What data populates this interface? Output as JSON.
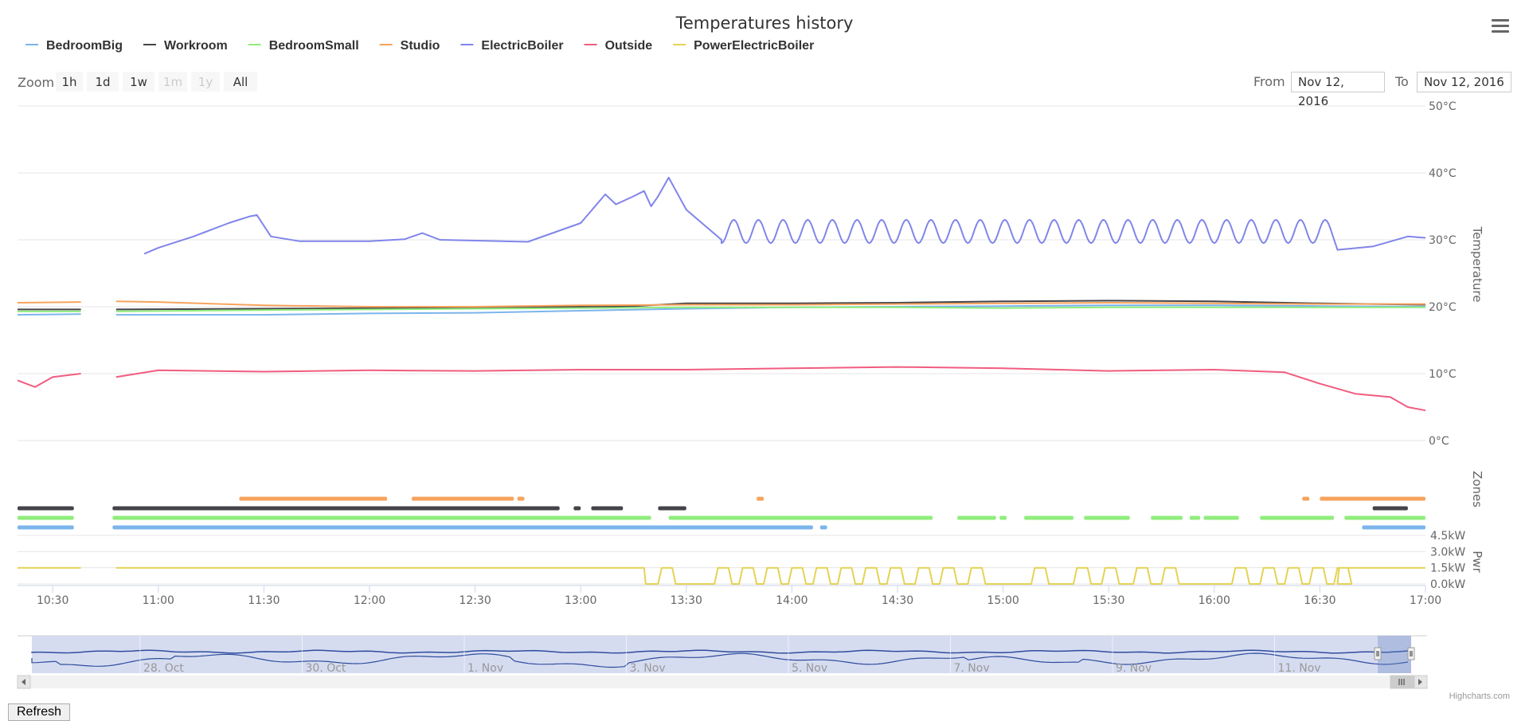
{
  "chart_data": {
    "type": "line",
    "title": "Temperatures history",
    "series": [
      {
        "name": "BedroomBig",
        "color": "#7cb5ec",
        "axis": "temperature",
        "points": [
          [
            "10:20",
            18.8
          ],
          [
            "10:38",
            18.9
          ],
          [
            "10:48",
            18.8
          ],
          [
            "11:30",
            18.8
          ],
          [
            "12:00",
            19.0
          ],
          [
            "12:30",
            19.1
          ],
          [
            "13:00",
            19.4
          ],
          [
            "13:30",
            19.7
          ],
          [
            "14:00",
            19.9
          ],
          [
            "14:30",
            20.0
          ],
          [
            "15:00",
            20.1
          ],
          [
            "15:30",
            20.2
          ],
          [
            "16:00",
            20.2
          ],
          [
            "16:30",
            20.1
          ],
          [
            "17:00",
            20.0
          ]
        ]
      },
      {
        "name": "Workroom",
        "color": "#434348",
        "axis": "temperature",
        "points": [
          [
            "10:20",
            19.6
          ],
          [
            "10:38",
            19.6
          ],
          [
            "10:48",
            19.6
          ],
          [
            "11:30",
            19.7
          ],
          [
            "12:00",
            19.8
          ],
          [
            "12:30",
            19.9
          ],
          [
            "13:00",
            20.0
          ],
          [
            "13:15",
            20.1
          ],
          [
            "13:30",
            20.5
          ],
          [
            "14:00",
            20.5
          ],
          [
            "14:30",
            20.6
          ],
          [
            "15:00",
            20.8
          ],
          [
            "15:30",
            20.9
          ],
          [
            "16:00",
            20.8
          ],
          [
            "16:30",
            20.5
          ],
          [
            "17:00",
            20.3
          ]
        ]
      },
      {
        "name": "BedroomSmall",
        "color": "#90ed7d",
        "axis": "temperature",
        "points": [
          [
            "10:20",
            19.3
          ],
          [
            "10:38",
            19.3
          ],
          [
            "10:48",
            19.3
          ],
          [
            "11:30",
            19.5
          ],
          [
            "12:00",
            19.6
          ],
          [
            "12:30",
            19.7
          ],
          [
            "13:00",
            19.8
          ],
          [
            "13:30",
            19.9
          ],
          [
            "14:00",
            19.9
          ],
          [
            "14:30",
            19.9
          ],
          [
            "15:00",
            19.8
          ],
          [
            "15:30",
            19.9
          ],
          [
            "16:00",
            19.9
          ],
          [
            "16:30",
            19.9
          ],
          [
            "17:00",
            19.9
          ]
        ]
      },
      {
        "name": "Studio",
        "color": "#f7a35c",
        "axis": "temperature",
        "points": [
          [
            "10:20",
            20.6
          ],
          [
            "10:38",
            20.7
          ],
          [
            "10:48",
            20.8
          ],
          [
            "11:00",
            20.7
          ],
          [
            "11:30",
            20.2
          ],
          [
            "12:00",
            20.0
          ],
          [
            "12:30",
            20.0
          ],
          [
            "13:00",
            20.2
          ],
          [
            "13:30",
            20.3
          ],
          [
            "14:00",
            20.3
          ],
          [
            "14:30",
            20.4
          ],
          [
            "15:00",
            20.5
          ],
          [
            "15:30",
            20.6
          ],
          [
            "16:00",
            20.5
          ],
          [
            "16:30",
            20.4
          ],
          [
            "17:00",
            20.4
          ]
        ]
      },
      {
        "name": "ElectricBoiler",
        "color": "#8085e9",
        "axis": "temperature",
        "points": [
          [
            "10:56",
            27.9
          ],
          [
            "11:00",
            28.8
          ],
          [
            "11:10",
            30.5
          ],
          [
            "11:20",
            32.5
          ],
          [
            "11:26",
            33.5
          ],
          [
            "11:28",
            33.7
          ],
          [
            "11:32",
            30.5
          ],
          [
            "11:40",
            29.8
          ],
          [
            "12:00",
            29.8
          ],
          [
            "12:10",
            30.1
          ],
          [
            "12:15",
            31.0
          ],
          [
            "12:20",
            30.0
          ],
          [
            "12:45",
            29.7
          ],
          [
            "13:00",
            32.5
          ],
          [
            "13:07",
            36.8
          ],
          [
            "13:10",
            35.3
          ],
          [
            "13:15",
            36.5
          ],
          [
            "13:18",
            37.3
          ],
          [
            "13:20",
            35.0
          ],
          [
            "13:22",
            36.5
          ],
          [
            "13:25",
            39.3
          ],
          [
            "13:30",
            34.5
          ],
          [
            "13:40",
            30.0
          ],
          [
            "17:00",
            30.5
          ]
        ],
        "oscillation": {
          "start": "13:40",
          "end": "16:33",
          "low": 29.5,
          "high": 33.0,
          "period_minutes": 7
        },
        "tail": [
          [
            "16:35",
            28.5
          ],
          [
            "16:45",
            29.0
          ],
          [
            "16:55",
            30.5
          ],
          [
            "17:00",
            30.3
          ]
        ]
      },
      {
        "name": "Outside",
        "color": "#f15c80",
        "axis": "temperature",
        "points": [
          [
            "10:20",
            9.0
          ],
          [
            "10:25",
            8.0
          ],
          [
            "10:30",
            9.5
          ],
          [
            "10:38",
            10.0
          ],
          [
            "10:48",
            9.5
          ],
          [
            "11:00",
            10.5
          ],
          [
            "11:30",
            10.3
          ],
          [
            "12:00",
            10.5
          ],
          [
            "12:30",
            10.4
          ],
          [
            "13:00",
            10.6
          ],
          [
            "13:30",
            10.6
          ],
          [
            "14:00",
            10.8
          ],
          [
            "14:30",
            11.0
          ],
          [
            "15:00",
            10.8
          ],
          [
            "15:30",
            10.4
          ],
          [
            "16:00",
            10.6
          ],
          [
            "16:20",
            10.2
          ],
          [
            "16:30",
            8.5
          ],
          [
            "16:40",
            7.0
          ],
          [
            "16:50",
            6.5
          ],
          [
            "16:55",
            5.0
          ],
          [
            "17:00",
            4.5
          ]
        ]
      },
      {
        "name": "PowerElectricBoiler",
        "color": "#e4d354",
        "axis": "power",
        "points": [
          [
            "10:20",
            1.5
          ],
          [
            "10:38",
            1.5
          ],
          [
            "10:48",
            1.5
          ],
          [
            "13:18",
            1.5
          ]
        ],
        "pulses": [
          "13:22",
          "13:38",
          "13:45",
          "13:52",
          "13:59",
          "14:06",
          "14:13",
          "14:20",
          "14:27",
          "14:35",
          "14:42",
          "14:50",
          "15:08",
          "15:20",
          "15:28",
          "15:37",
          "15:45",
          "16:05",
          "16:13",
          "16:20",
          "16:27",
          "16:34"
        ],
        "tail_start": "16:35"
      }
    ],
    "zones": [
      {
        "series": "Studio",
        "color": "#f7a35c",
        "row": 1,
        "segments": [
          [
            "11:23",
            "12:05"
          ],
          [
            "12:12",
            "12:41"
          ],
          [
            "12:42",
            "12:44"
          ],
          [
            "13:50",
            "13:52"
          ],
          [
            "16:25",
            "16:27"
          ],
          [
            "16:30",
            "17:00"
          ]
        ]
      },
      {
        "series": "Workroom",
        "color": "#434348",
        "row": 2,
        "segments": [
          [
            "10:20",
            "10:36"
          ],
          [
            "10:47",
            "12:54"
          ],
          [
            "12:58",
            "13:00"
          ],
          [
            "13:03",
            "13:12"
          ],
          [
            "13:22",
            "13:30"
          ],
          [
            "16:45",
            "16:55"
          ]
        ]
      },
      {
        "series": "BedroomSmall",
        "color": "#90ed7d",
        "row": 3,
        "segments": [
          [
            "10:20",
            "10:36"
          ],
          [
            "10:47",
            "13:20"
          ],
          [
            "13:25",
            "14:40"
          ],
          [
            "14:47",
            "14:58"
          ],
          [
            "14:59",
            "15:01"
          ],
          [
            "15:06",
            "15:20"
          ],
          [
            "15:23",
            "15:36"
          ],
          [
            "15:42",
            "15:51"
          ],
          [
            "15:53",
            "15:56"
          ],
          [
            "15:57",
            "16:07"
          ],
          [
            "16:13",
            "16:34"
          ],
          [
            "16:37",
            "17:00"
          ]
        ]
      },
      {
        "series": "BedroomBig",
        "color": "#7cb5ec",
        "row": 4,
        "segments": [
          [
            "10:20",
            "10:36"
          ],
          [
            "10:47",
            "14:06"
          ],
          [
            "14:08",
            "14:10"
          ],
          [
            "16:42",
            "17:00"
          ]
        ]
      }
    ],
    "x_axis": {
      "min": "10:20",
      "max": "17:00",
      "ticks": [
        "10:30",
        "11:00",
        "11:30",
        "12:00",
        "12:30",
        "13:00",
        "13:30",
        "14:00",
        "14:30",
        "15:00",
        "15:30",
        "16:00",
        "16:30",
        "17:00"
      ]
    },
    "y_axes": [
      {
        "title": "Temperature",
        "range": [
          0,
          50
        ],
        "ticks": [
          "0°C",
          "10°C",
          "20°C",
          "30°C",
          "40°C",
          "50°C"
        ],
        "values": [
          0,
          10,
          20,
          30,
          40,
          50
        ]
      },
      {
        "title": "Zones"
      },
      {
        "title": "Pwr",
        "range": [
          0,
          4.5
        ],
        "ticks": [
          "0.0kW",
          "1.5kW",
          "3.0kW",
          "4.5kW"
        ],
        "values": [
          0,
          1.5,
          3.0,
          4.5
        ]
      }
    ],
    "navigator": {
      "labels": [
        "28. Oct",
        "30. Oct",
        "1. Nov",
        "3. Nov",
        "5. Nov",
        "7. Nov",
        "9. Nov",
        "11. Nov"
      ],
      "range": [
        "27. Oct",
        "12. Nov"
      ],
      "selected_start_fraction": 0.985,
      "selected_end_fraction": 1.0
    },
    "grid": true,
    "legend_position": "top-left"
  },
  "zoom": {
    "label": "Zoom",
    "buttons": [
      {
        "label": "1h",
        "enabled": true
      },
      {
        "label": "1d",
        "enabled": true
      },
      {
        "label": "1w",
        "enabled": true
      },
      {
        "label": "1m",
        "enabled": false
      },
      {
        "label": "1y",
        "enabled": false
      },
      {
        "label": "All",
        "enabled": true
      }
    ]
  },
  "range": {
    "from_label": "From",
    "from_value": "Nov 12, 2016",
    "to_label": "To",
    "to_value": "Nov 12, 2016"
  },
  "credits": "Highcharts.com",
  "refresh_label": "Refresh",
  "icons": {
    "menu": "hamburger-menu-icon"
  }
}
